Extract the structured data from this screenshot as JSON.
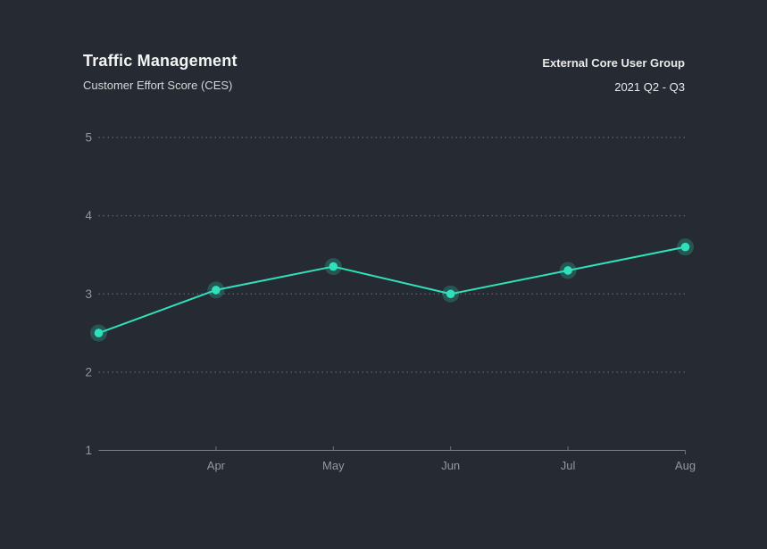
{
  "header": {
    "title": "Traffic Management",
    "subtitle": "Customer Effort Score (CES)",
    "group": "External Core User Group",
    "period": "2021 Q2 - Q3"
  },
  "colors": {
    "background": "#262A32",
    "accent": "#30E0BB",
    "grid": "#585C63",
    "axis": "#7E8187",
    "tick": "#6E7177",
    "tick_label": "#94979C",
    "title": "#F3F4F5",
    "subtitle": "#D3D5D8",
    "annotation": "#E9EAEC"
  },
  "chart_data": {
    "type": "line",
    "title": "Traffic Management",
    "subtitle": "Customer Effort Score (CES)",
    "series_name": "Customer Effort Score (CES)",
    "x_labels": [
      "",
      "Apr",
      "May",
      "Jun",
      "Jul",
      "Aug"
    ],
    "values": [
      2.5,
      3.05,
      3.35,
      3.0,
      3.3,
      3.6
    ],
    "yticks": [
      1,
      2,
      3,
      4,
      5
    ],
    "ylim": [
      1,
      5
    ],
    "xlabel": "",
    "ylabel": "",
    "grid": "horizontal-dotted",
    "legend_position": "none",
    "annotations": [
      "External Core User Group",
      "2021 Q2 - Q3"
    ]
  }
}
